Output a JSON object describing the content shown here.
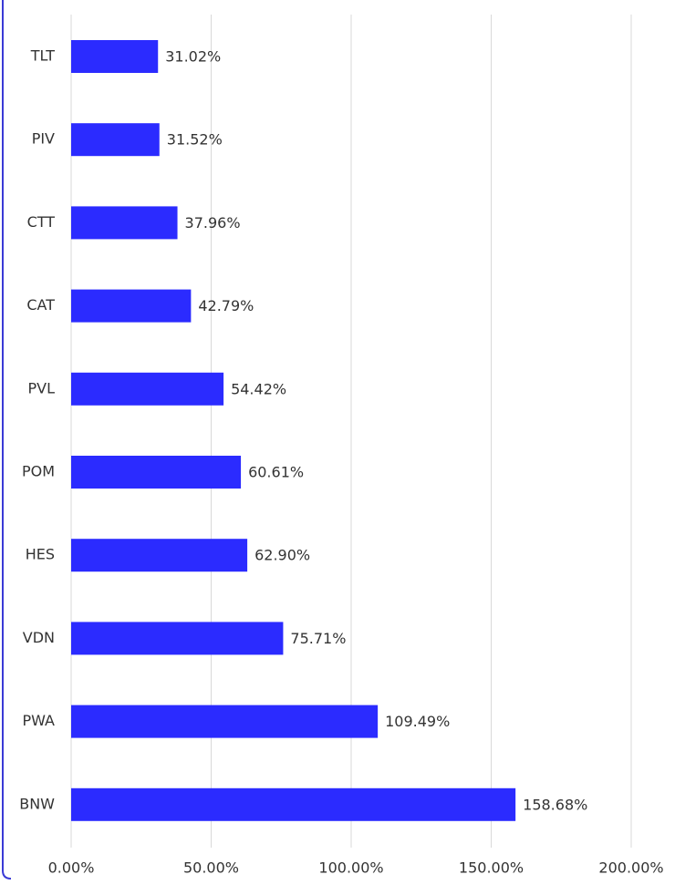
{
  "chart_data": {
    "type": "hbar",
    "categories": [
      "TLT",
      "PIV",
      "CTT",
      "CAT",
      "PVL",
      "POM",
      "HES",
      "VDN",
      "PWA",
      "BNW"
    ],
    "values": [
      31.02,
      31.52,
      37.96,
      42.79,
      54.42,
      60.61,
      62.9,
      75.71,
      109.49,
      158.68
    ],
    "value_labels": [
      "31.02%",
      "31.52%",
      "37.96%",
      "42.79%",
      "54.42%",
      "60.61%",
      "62.90%",
      "75.71%",
      "109.49%",
      "158.68%"
    ],
    "color": "#2b2bff",
    "xlim": [
      0,
      200
    ],
    "xticks": [
      {
        "value": 0,
        "label": "0.00%"
      },
      {
        "value": 50,
        "label": "50.00%"
      },
      {
        "value": 100,
        "label": "100.00%"
      },
      {
        "value": 150,
        "label": "150.00%"
      },
      {
        "value": 200,
        "label": "200.00%"
      }
    ],
    "grid": true
  }
}
